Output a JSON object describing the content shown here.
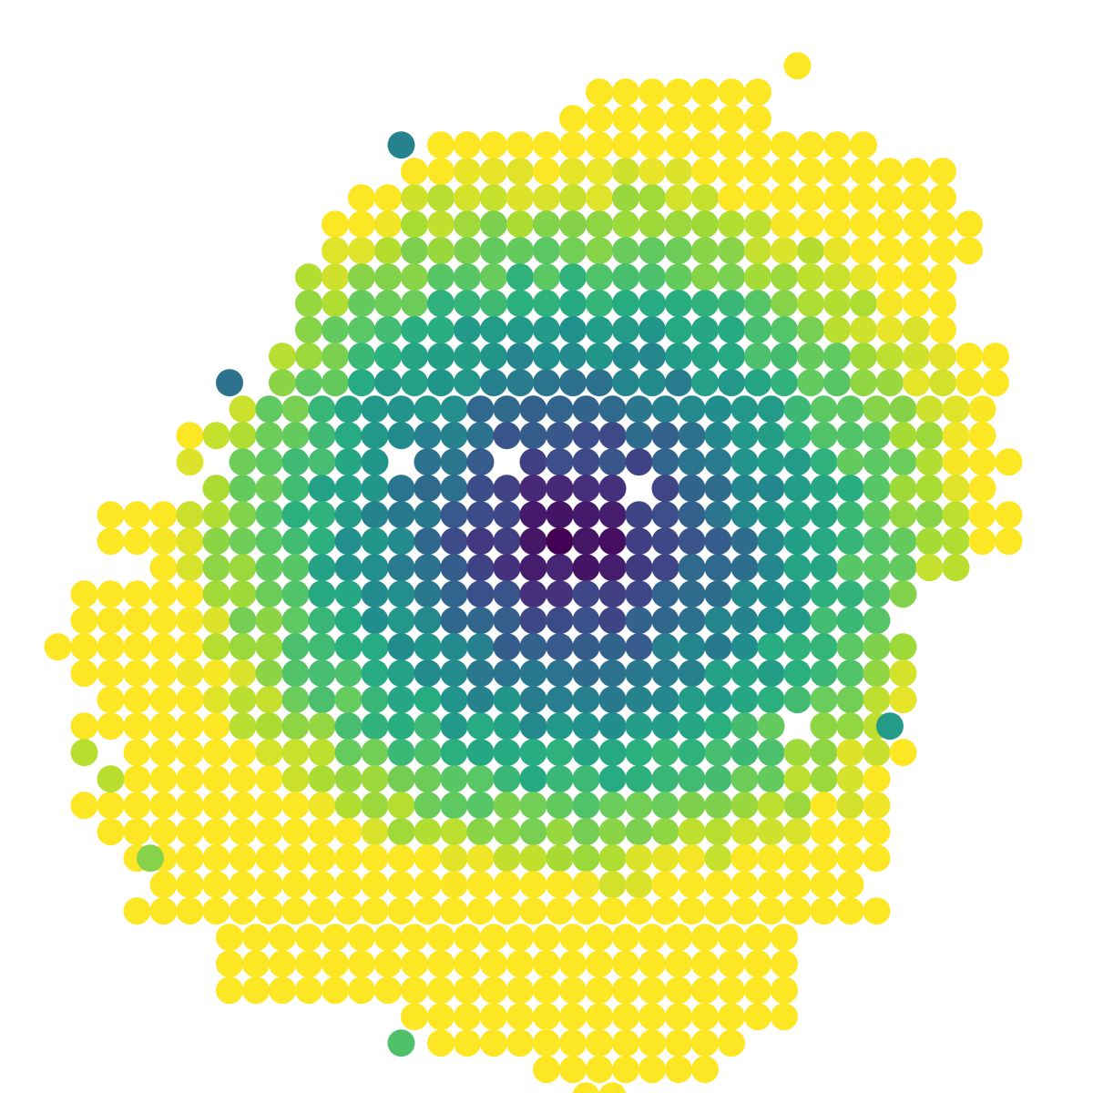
{
  "chart_data": {
    "type": "scatter",
    "title": "",
    "xlabel": "",
    "ylabel": "",
    "colormap": "viridis",
    "point_style": "filled circles on a hexagonal grid, color encodes a scalar value (center low / dark purple, rim high / yellow)",
    "axes_visible": false,
    "grid": false,
    "legend": "none",
    "xlim": [
      0,
      40
    ],
    "ylim": [
      0,
      40
    ],
    "value_range": [
      0,
      1
    ],
    "shape_rows": [
      {
        "y": 38.2,
        "x_start": 29.5,
        "x_end": 29.5
      },
      {
        "y": 37.2,
        "x_start": 22.0,
        "x_end": 28.5
      },
      {
        "y": 36.2,
        "x_start": 21.0,
        "x_end": 28.5
      },
      {
        "y": 35.2,
        "x_start": 16.0,
        "x_end": 32.5
      },
      {
        "y": 34.2,
        "x_start": 15.0,
        "x_end": 35.5
      },
      {
        "y": 33.2,
        "x_start": 13.0,
        "x_end": 35.5
      },
      {
        "y": 32.2,
        "x_start": 12.0,
        "x_end": 36.0
      },
      {
        "y": 31.2,
        "x_start": 12.0,
        "x_end": 36.5
      },
      {
        "y": 30.2,
        "x_start": 11.0,
        "x_end": 35.5
      },
      {
        "y": 29.2,
        "x_start": 11.0,
        "x_end": 35.5
      },
      {
        "y": 28.2,
        "x_start": 11.0,
        "x_end": 35.0
      },
      {
        "y": 27.2,
        "x_start": 10.0,
        "x_end": 37.5
      },
      {
        "y": 26.2,
        "x_start": 10.0,
        "x_end": 37.0
      },
      {
        "y": 25.2,
        "x_start": 8.5,
        "x_end": 37.0
      },
      {
        "y": 24.2,
        "x_start": 6.5,
        "x_end": 37.0
      },
      {
        "y": 23.2,
        "x_start": 6.5,
        "x_end": 38.0
      },
      {
        "y": 22.2,
        "x_start": 7.5,
        "x_end": 36.5
      },
      {
        "y": 21.2,
        "x_start": 3.5,
        "x_end": 37.5
      },
      {
        "y": 20.2,
        "x_start": 3.5,
        "x_end": 38.0
      },
      {
        "y": 19.2,
        "x_start": 5.5,
        "x_end": 35.5
      },
      {
        "y": 18.2,
        "x_start": 2.5,
        "x_end": 34.0
      },
      {
        "y": 17.2,
        "x_start": 2.5,
        "x_end": 33.0
      },
      {
        "y": 16.2,
        "x_start": 1.5,
        "x_end": 33.5
      },
      {
        "y": 15.2,
        "x_start": 2.5,
        "x_end": 33.5
      },
      {
        "y": 14.2,
        "x_start": 3.5,
        "x_end": 33.5
      },
      {
        "y": 13.2,
        "x_start": 2.5,
        "x_end": 32.5
      },
      {
        "y": 12.2,
        "x_start": 4.5,
        "x_end": 33.5
      },
      {
        "y": 11.2,
        "x_start": 4.5,
        "x_end": 32.5
      },
      {
        "y": 10.2,
        "x_start": 2.5,
        "x_end": 32.5
      },
      {
        "y": 9.2,
        "x_start": 3.5,
        "x_end": 32.5
      },
      {
        "y": 8.2,
        "x_start": 4.5,
        "x_end": 32.5
      },
      {
        "y": 7.2,
        "x_start": 5.5,
        "x_end": 31.5
      },
      {
        "y": 6.2,
        "x_start": 4.5,
        "x_end": 32.5
      },
      {
        "y": 5.2,
        "x_start": 8.0,
        "x_end": 29.0
      },
      {
        "y": 4.2,
        "x_start": 8.0,
        "x_end": 29.5
      },
      {
        "y": 3.2,
        "x_start": 8.0,
        "x_end": 29.5
      },
      {
        "y": 2.2,
        "x_start": 15.0,
        "x_end": 29.5
      },
      {
        "y": 1.2,
        "x_start": 16.0,
        "x_end": 27.5
      },
      {
        "y": 0.2,
        "x_start": 20.0,
        "x_end": 26.5
      },
      {
        "y": -0.8,
        "x_start": 21.5,
        "x_end": 22.5
      }
    ],
    "holes": [
      {
        "x": 14.5,
        "y": 23.2
      },
      {
        "x": 18.5,
        "y": 23.2
      },
      {
        "x": 23.5,
        "y": 22.2
      },
      {
        "x": 7.5,
        "y": 23.2
      },
      {
        "x": 30.0,
        "y": 14.2
      },
      {
        "x": 29.5,
        "y": 13.2
      }
    ],
    "extra_points": [
      {
        "x": 8.0,
        "y": 26.2,
        "value": 0.38
      },
      {
        "x": 14.5,
        "y": 35.2,
        "value": 0.45
      },
      {
        "x": 5.0,
        "y": 8.2,
        "value": 0.82
      },
      {
        "x": 2.5,
        "y": 12.2,
        "value": 0.9
      },
      {
        "x": 3.5,
        "y": 11.2,
        "value": 0.9
      },
      {
        "x": 14.5,
        "y": 1.2,
        "value": 0.72
      },
      {
        "x": 33.0,
        "y": 13.2,
        "value": 0.55
      }
    ],
    "low_center": {
      "x": 21.0,
      "y": 20.5
    },
    "value_scale": 15.5
  }
}
